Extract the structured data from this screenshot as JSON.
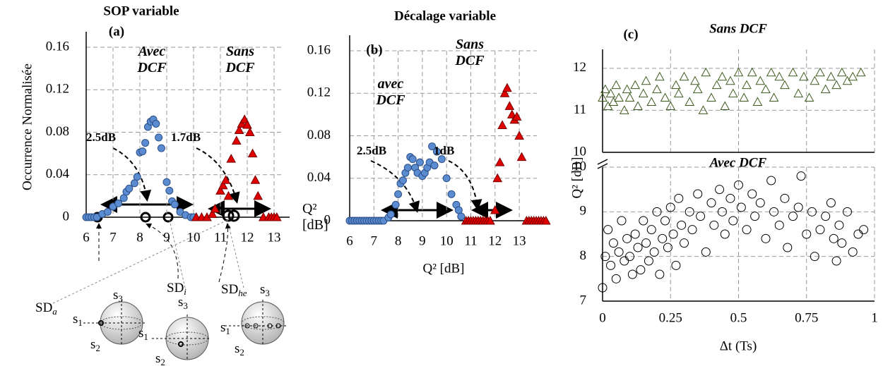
{
  "chart_data": [
    {
      "type": "scatter",
      "title": "SOP variable",
      "label": "(a)",
      "ylabel": "Occurrence Normalisée",
      "xlim": [
        6,
        13.3
      ],
      "xticks": [
        6,
        7,
        8,
        9,
        10,
        11,
        12,
        13
      ],
      "ylim": [
        0,
        0.16
      ],
      "yticks": [
        0,
        0.04,
        0.08,
        0.12,
        0.16
      ],
      "grid": true,
      "annotations": [
        "Avec DCF",
        "Sans DCF",
        "2.5dB",
        "1.7dB"
      ],
      "series": [
        {
          "color": "#5b8bd0",
          "marker": "circle",
          "filled": true,
          "x": [
            6.0,
            6.1,
            6.2,
            6.3,
            6.4,
            6.6,
            6.8,
            7.0,
            7.2,
            7.4,
            7.5,
            7.6,
            7.8,
            7.9,
            8.0,
            8.1,
            8.2,
            8.3,
            8.4,
            8.5,
            8.6,
            8.7,
            8.8,
            9.0,
            9.1,
            9.2,
            9.3,
            9.5,
            9.7,
            9.9,
            10.0
          ],
          "values": [
            0,
            0,
            0,
            0,
            0,
            0.003,
            0.005,
            0.01,
            0.013,
            0.018,
            0.024,
            0.027,
            0.032,
            0.038,
            0.061,
            0.062,
            0.07,
            0.085,
            0.09,
            0.092,
            0.088,
            0.075,
            0.065,
            0.033,
            0.025,
            0.015,
            0.012,
            0.005,
            0.002,
            0,
            0
          ]
        },
        {
          "color": "#e00000",
          "marker": "triangle",
          "filled": true,
          "x": [
            10.1,
            10.3,
            10.5,
            10.7,
            10.8,
            11.0,
            11.1,
            11.2,
            11.3,
            11.4,
            11.6,
            11.7,
            11.8,
            11.9,
            12.0,
            12.1,
            12.2,
            12.3,
            12.4,
            12.6,
            12.8,
            12.9,
            13.0,
            13.1
          ],
          "values": [
            0,
            0,
            0,
            0.003,
            0.008,
            0.025,
            0.03,
            0.035,
            0.02,
            0.055,
            0.072,
            0.082,
            0.088,
            0.092,
            0.087,
            0.08,
            0.06,
            0.035,
            0.02,
            0,
            0,
            0,
            0,
            0
          ]
        }
      ]
    },
    {
      "type": "scatter",
      "title": "Décalage variable",
      "label": "(b)",
      "xlabel": "Q² [dB]",
      "ylabel": "Q² [dB]",
      "xlim": [
        6,
        14.3
      ],
      "xticks": [
        6,
        7,
        8,
        9,
        10,
        11,
        12,
        13
      ],
      "ylim": [
        0,
        0.16
      ],
      "yticks": [
        0,
        0.04,
        0.08,
        0.12,
        0.16
      ],
      "grid": true,
      "annotations": [
        "avec DCF",
        "Sans DCF",
        "2.5dB",
        "1dB"
      ],
      "series": [
        {
          "color": "#5b8bd0",
          "marker": "circle",
          "filled": true,
          "x": [
            6.0,
            6.1,
            6.2,
            6.3,
            6.4,
            6.5,
            6.6,
            6.7,
            6.8,
            6.9,
            7.0,
            7.1,
            7.2,
            7.3,
            7.4,
            7.6,
            7.7,
            7.9,
            8.0,
            8.1,
            8.2,
            8.3,
            8.4,
            8.5,
            8.6,
            8.7,
            8.8,
            8.9,
            9.0,
            9.1,
            9.2,
            9.3,
            9.4,
            9.5,
            9.6,
            9.8,
            10.0,
            10.2,
            10.4,
            10.5,
            10.6
          ],
          "values": [
            0,
            0,
            0,
            0,
            0,
            0,
            0,
            0,
            0,
            0,
            0,
            0,
            0,
            0,
            0,
            0.003,
            0.006,
            0.015,
            0.025,
            0.035,
            0.038,
            0.045,
            0.05,
            0.06,
            0.058,
            0.05,
            0.045,
            0.055,
            0.042,
            0.045,
            0.05,
            0.055,
            0.07,
            0.052,
            0.065,
            0.058,
            0.04,
            0.025,
            0.015,
            0.01,
            0.004
          ]
        },
        {
          "color": "#e00000",
          "marker": "triangle",
          "filled": true,
          "x": [
            10.8,
            10.9,
            11.0,
            11.1,
            11.2,
            11.3,
            11.4,
            11.5,
            11.6,
            11.7,
            11.8,
            12.0,
            12.1,
            12.2,
            12.3,
            12.4,
            12.5,
            12.6,
            12.7,
            12.8,
            12.9,
            13.0,
            13.1,
            13.3,
            13.4,
            13.5,
            13.6,
            13.7,
            13.8,
            13.9,
            14.0,
            14.1
          ],
          "values": [
            0,
            0,
            0,
            0,
            0,
            0,
            0,
            0,
            0,
            0,
            0,
            0.01,
            0.04,
            0.055,
            0.09,
            0.12,
            0.125,
            0.108,
            0.1,
            0.095,
            0.098,
            0.08,
            0.06,
            0,
            0,
            0,
            0,
            0,
            0,
            0,
            0,
            0
          ]
        }
      ]
    },
    {
      "type": "scatter",
      "title": "Sans DCF",
      "label": "(c)",
      "xlim": [
        0,
        1
      ],
      "ylim": [
        10,
        12.45
      ],
      "yticks": [
        10,
        11,
        12
      ],
      "grid": true,
      "series": [
        {
          "color": "#3d5a1e",
          "marker": "triangle",
          "filled": false,
          "x": [
            0.0,
            0.01,
            0.02,
            0.03,
            0.04,
            0.05,
            0.06,
            0.08,
            0.09,
            0.1,
            0.12,
            0.13,
            0.15,
            0.16,
            0.18,
            0.2,
            0.21,
            0.23,
            0.25,
            0.27,
            0.28,
            0.3,
            0.32,
            0.34,
            0.35,
            0.37,
            0.38,
            0.4,
            0.42,
            0.44,
            0.45,
            0.47,
            0.48,
            0.5,
            0.52,
            0.53,
            0.55,
            0.57,
            0.58,
            0.6,
            0.62,
            0.63,
            0.65,
            0.67,
            0.7,
            0.72,
            0.74,
            0.76,
            0.78,
            0.8,
            0.82,
            0.84,
            0.86,
            0.88,
            0.9,
            0.92,
            0.95
          ],
          "values": [
            11.3,
            11.5,
            11.1,
            11.4,
            11.2,
            11.6,
            11.3,
            11.0,
            11.5,
            11.3,
            11.6,
            11.1,
            11.4,
            11.7,
            11.2,
            11.5,
            11.8,
            11.3,
            11.1,
            11.6,
            11.4,
            11.8,
            11.2,
            11.7,
            11.5,
            11.0,
            11.9,
            11.3,
            11.6,
            11.8,
            11.1,
            11.7,
            11.4,
            11.9,
            11.3,
            11.6,
            11.9,
            11.2,
            11.7,
            11.5,
            11.9,
            11.3,
            11.8,
            11.6,
            11.9,
            11.4,
            11.8,
            11.3,
            11.7,
            11.9,
            11.5,
            11.8,
            11.6,
            11.9,
            11.7,
            11.8,
            11.9
          ]
        }
      ]
    },
    {
      "type": "scatter",
      "title": "Avec DCF",
      "xlabel": "Δt (Ts)",
      "ylabel": "Q² [dB]",
      "xlim": [
        0,
        1
      ],
      "xticks": [
        0,
        0.25,
        0.5,
        0.75,
        1
      ],
      "ylim": [
        7,
        10
      ],
      "yticks": [
        7,
        8,
        9,
        10
      ],
      "grid": true,
      "series": [
        {
          "color": "#000000",
          "marker": "circle",
          "filled": false,
          "x": [
            0.0,
            0.01,
            0.02,
            0.03,
            0.04,
            0.05,
            0.06,
            0.07,
            0.08,
            0.09,
            0.1,
            0.11,
            0.12,
            0.13,
            0.14,
            0.15,
            0.16,
            0.17,
            0.18,
            0.19,
            0.2,
            0.21,
            0.22,
            0.23,
            0.24,
            0.25,
            0.26,
            0.27,
            0.28,
            0.29,
            0.3,
            0.32,
            0.33,
            0.35,
            0.36,
            0.38,
            0.4,
            0.41,
            0.43,
            0.44,
            0.45,
            0.47,
            0.48,
            0.5,
            0.51,
            0.53,
            0.55,
            0.56,
            0.58,
            0.6,
            0.62,
            0.63,
            0.65,
            0.67,
            0.68,
            0.7,
            0.72,
            0.73,
            0.75,
            0.77,
            0.78,
            0.8,
            0.82,
            0.84,
            0.85,
            0.86,
            0.87,
            0.88,
            0.9,
            0.92,
            0.94,
            0.96
          ],
          "values": [
            7.3,
            8.0,
            8.6,
            7.8,
            8.3,
            7.5,
            8.1,
            8.8,
            7.9,
            8.4,
            8.0,
            7.6,
            8.5,
            8.2,
            7.7,
            8.8,
            8.3,
            7.9,
            8.6,
            8.1,
            9.0,
            7.6,
            8.4,
            8.8,
            8.2,
            9.1,
            8.5,
            7.8,
            9.3,
            8.7,
            8.3,
            9.0,
            8.6,
            9.4,
            8.9,
            8.1,
            9.2,
            8.7,
            9.5,
            9.0,
            8.5,
            9.3,
            8.8,
            9.6,
            9.1,
            8.6,
            9.4,
            8.9,
            9.2,
            8.4,
            9.7,
            9.0,
            8.7,
            9.3,
            8.2,
            8.9,
            9.1,
            9.8,
            8.5,
            9.0,
            8.0,
            8.6,
            8.9,
            9.2,
            8.4,
            7.9,
            8.7,
            8.3,
            9.0,
            8.1,
            8.5,
            8.6
          ]
        }
      ]
    }
  ],
  "diagram": {
    "pointers": [
      {
        "base": "SD",
        "sub": "a"
      },
      {
        "base": "SD",
        "sub": "i"
      },
      {
        "base": "SD",
        "sub": "he"
      }
    ],
    "axis_labels": [
      {
        "base": "s",
        "sub": "1"
      },
      {
        "base": "s",
        "sub": "2"
      },
      {
        "base": "s",
        "sub": "3"
      }
    ]
  }
}
